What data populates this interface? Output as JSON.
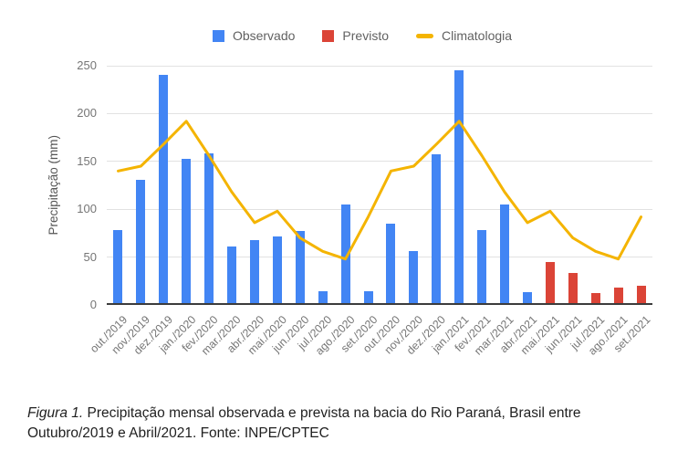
{
  "legend": {
    "items": [
      {
        "label": "Observado",
        "color": "#4285F4",
        "marker": "square"
      },
      {
        "label": "Previsto",
        "color": "#DB4437",
        "marker": "square"
      },
      {
        "label": "Climatologia",
        "color": "#F4B400",
        "marker": "dash"
      }
    ]
  },
  "chart_data": {
    "type": "bar",
    "title": "",
    "xlabel": "",
    "ylabel": "Precipitação (mm)",
    "ylim": [
      0,
      250
    ],
    "yticks": [
      0,
      50,
      100,
      150,
      200,
      250
    ],
    "grid": true,
    "legend_position": "top",
    "categories": [
      "out./2019",
      "nov./2019",
      "dez./2019",
      "jan./2020",
      "fev./2020",
      "mar./2020",
      "abr./2020",
      "mai./2020",
      "jun./2020",
      "jul./2020",
      "ago./2020",
      "set./2020",
      "out./2020",
      "nov./2020",
      "dez./2020",
      "jan./2021",
      "fev./2021",
      "mar./2021",
      "abr./2021",
      "mai./2021",
      "jun./2021",
      "jul./2021",
      "ago./2021",
      "set./2021"
    ],
    "series": [
      {
        "name": "Observado",
        "type": "bar",
        "color": "#4285F4",
        "values": [
          78,
          131,
          240,
          153,
          158,
          61,
          68,
          72,
          77,
          14,
          105,
          14,
          85,
          56,
          157,
          245,
          78,
          105,
          13,
          null,
          null,
          null,
          null,
          null
        ]
      },
      {
        "name": "Previsto",
        "type": "bar",
        "color": "#DB4437",
        "values": [
          null,
          null,
          null,
          null,
          null,
          null,
          null,
          null,
          null,
          null,
          null,
          null,
          null,
          null,
          null,
          null,
          null,
          null,
          null,
          45,
          33,
          12,
          18,
          20
        ]
      },
      {
        "name": "Climatologia",
        "type": "line",
        "color": "#F4B400",
        "values": [
          140,
          145,
          168,
          192,
          156,
          118,
          86,
          98,
          70,
          56,
          48,
          92,
          140,
          145,
          168,
          192,
          156,
          118,
          86,
          98,
          70,
          56,
          48,
          92
        ]
      }
    ]
  },
  "caption": {
    "label": "Figura 1.",
    "text": " Precipitação mensal observada e prevista na bacia do Rio Paraná, Brasil entre Outubro/2019 e Abril/2021. Fonte: INPE/CPTEC"
  }
}
